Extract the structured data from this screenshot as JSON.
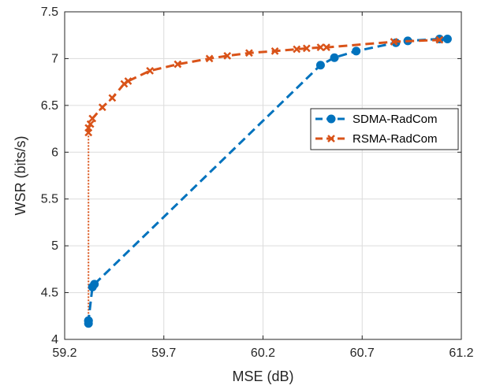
{
  "chart_data": {
    "type": "line",
    "xlabel": "MSE (dB)",
    "ylabel": "WSR (bits/s)",
    "xlim": [
      59.2,
      61.2
    ],
    "ylim": [
      4,
      7.5
    ],
    "xticks": [
      59.2,
      59.7,
      60.2,
      60.7,
      61.2
    ],
    "xtick_labels": [
      "59.2",
      "59.7",
      "60.2",
      "60.7",
      "61.2"
    ],
    "yticks": [
      4,
      4.5,
      5,
      5.5,
      6,
      6.5,
      7,
      7.5
    ],
    "ytick_labels": [
      "4",
      "4.5",
      "5",
      "5.5",
      "6",
      "6.5",
      "7",
      "7.5"
    ],
    "grid": true,
    "legend_position": "center-right",
    "series": [
      {
        "name": "SDMA-RadCom",
        "color": "#0072BD",
        "marker": "circle",
        "line_style": "dashed",
        "x": [
          59.32,
          59.32,
          59.32,
          59.34,
          59.35,
          60.49,
          60.56,
          60.67,
          60.87,
          60.93,
          61.09,
          61.13
        ],
        "y": [
          4.17,
          4.2,
          4.2,
          4.56,
          4.59,
          6.93,
          7.01,
          7.08,
          7.17,
          7.19,
          7.21,
          7.21
        ]
      },
      {
        "name": "RSMA-RadCom",
        "color": "#D95319",
        "marker": "x",
        "line_style": "dashed",
        "vertical_drop": {
          "x": 59.32,
          "y_from": 6.21,
          "y_to": 4.17,
          "style": "dotted"
        },
        "x": [
          59.32,
          59.32,
          59.33,
          59.34,
          59.39,
          59.44,
          59.5,
          59.52,
          59.63,
          59.77,
          59.93,
          60.02,
          60.13,
          60.26,
          60.37,
          60.42,
          60.49,
          60.52,
          60.86,
          61.09
        ],
        "y": [
          6.21,
          6.26,
          6.3,
          6.36,
          6.48,
          6.58,
          6.73,
          6.76,
          6.87,
          6.94,
          7.0,
          7.03,
          7.06,
          7.08,
          7.1,
          7.11,
          7.12,
          7.12,
          7.18,
          7.2
        ]
      }
    ]
  }
}
